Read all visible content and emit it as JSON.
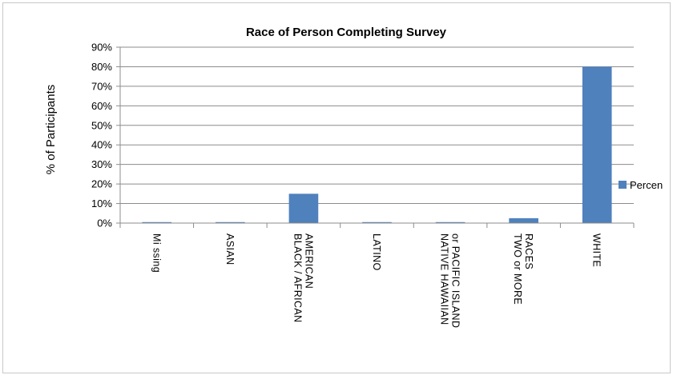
{
  "chart_data": {
    "type": "bar",
    "title": "Race of Person Completing Survey",
    "ylabel": "% of Participants",
    "xlabel": "",
    "categories": [
      [
        "Mi ssing"
      ],
      [
        "ASIAN"
      ],
      [
        "BLACK / AFRICAN",
        "AMERICAN"
      ],
      [
        "LATINO"
      ],
      [
        "NATIVE HAWAIIAN",
        "or PACIFIC ISLAND"
      ],
      [
        "TWO  or MORE",
        "RACES"
      ],
      [
        "WHITE"
      ]
    ],
    "series": [
      {
        "name": "Percen",
        "color": "#4f81bd",
        "values": [
          0.005,
          0.005,
          0.15,
          0.005,
          0.005,
          0.025,
          0.8
        ]
      }
    ],
    "ylim": [
      0,
      0.9
    ],
    "yticks": [
      "0%",
      "10%",
      "20%",
      "30%",
      "40%",
      "50%",
      "60%",
      "70%",
      "80%",
      "90%"
    ],
    "grid": true,
    "legend": "right"
  }
}
